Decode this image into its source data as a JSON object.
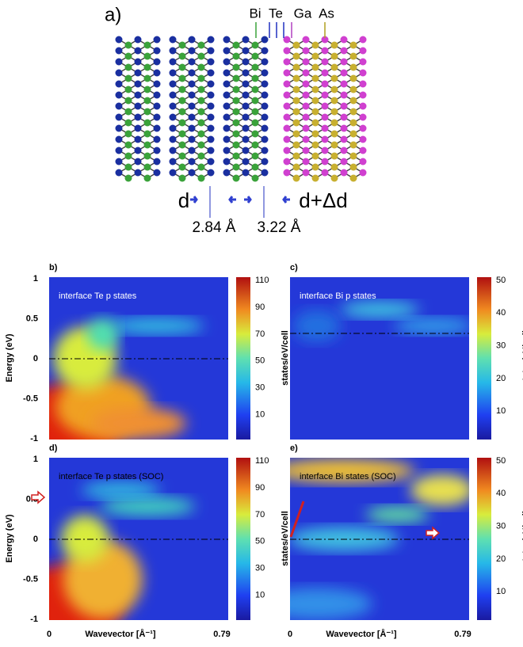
{
  "panel_a": {
    "label": "a)",
    "elements": [
      "Bi",
      "Te",
      "Ga",
      "As"
    ],
    "d": "d",
    "d_delta": "d+Δd",
    "distances": [
      "2.84 Å",
      "3.22 Å"
    ]
  },
  "panels": [
    {
      "label": "b)",
      "title": "interface Te p states",
      "colorbar_ticks": [
        "110",
        "90",
        "70",
        "50",
        "30",
        "10"
      ]
    },
    {
      "label": "c)",
      "title": "interface Bi p states",
      "colorbar_ticks": [
        "50",
        "40",
        "30",
        "20",
        "10"
      ]
    },
    {
      "label": "d)",
      "title": "interface Te p states (SOC)",
      "colorbar_ticks": [
        "110",
        "90",
        "70",
        "50",
        "30",
        "10"
      ]
    },
    {
      "label": "e)",
      "title": "interface Bi states (SOC)",
      "colorbar_ticks": [
        "50",
        "40",
        "30",
        "20",
        "10"
      ]
    }
  ],
  "colorbar_label": "states/eV/cell",
  "y_axis": {
    "label": "Energy (eV)",
    "ticks": [
      "1",
      "0.5",
      "0",
      "-0.5",
      "-1"
    ]
  },
  "x_axis": {
    "label": "Wavevector [Å⁻¹]",
    "ticks": [
      "0",
      "0.79"
    ]
  }
}
